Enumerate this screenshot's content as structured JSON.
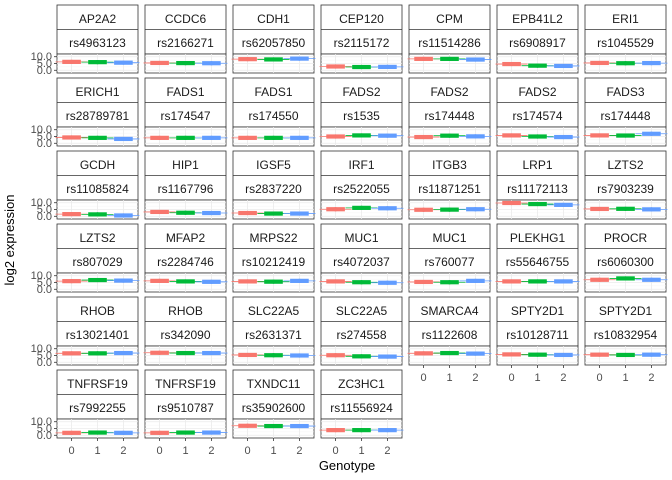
{
  "chart_data": {
    "type": "box",
    "xlabel": "Genotype",
    "ylabel": "log2 expression",
    "x_categories": [
      "0",
      "1",
      "2"
    ],
    "y_ticks": [
      0.0,
      5.0,
      10.0
    ],
    "y_tick_labels": [
      "0.0",
      "5.0",
      "10.0"
    ],
    "ylim": [
      -2,
      12
    ],
    "colors": [
      "#F8766D",
      "#00BA38",
      "#619CFF"
    ],
    "grid": true,
    "legend": "none",
    "panels": [
      {
        "gene": "AP2A2",
        "snp": "rs4963123",
        "medians": [
          6.2,
          6.0,
          5.6
        ]
      },
      {
        "gene": "CCDC6",
        "snp": "rs2166271",
        "medians": [
          5.4,
          5.3,
          5.2
        ]
      },
      {
        "gene": "CDH1",
        "snp": "rs62057850",
        "medians": [
          8.2,
          8.0,
          8.6
        ]
      },
      {
        "gene": "CEP120",
        "snp": "rs2115172",
        "medians": [
          2.8,
          2.4,
          2.5
        ]
      },
      {
        "gene": "CPM",
        "snp": "rs11514286",
        "medians": [
          8.4,
          8.4,
          7.9
        ]
      },
      {
        "gene": "EPB41L2",
        "snp": "rs6908917",
        "medians": [
          4.6,
          3.4,
          3.2
        ]
      },
      {
        "gene": "ERI1",
        "snp": "rs1045529",
        "medians": [
          5.4,
          5.2,
          5.3
        ]
      },
      {
        "gene": "ERICH1",
        "snp": "rs28789781",
        "medians": [
          4.3,
          4.0,
          3.2
        ]
      },
      {
        "gene": "FADS1",
        "snp": "rs174547",
        "medians": [
          4.0,
          4.0,
          4.0
        ]
      },
      {
        "gene": "FADS1",
        "snp": "rs174550",
        "medians": [
          4.0,
          4.0,
          4.0
        ]
      },
      {
        "gene": "FADS2",
        "snp": "rs1535",
        "medians": [
          5.0,
          5.8,
          5.6
        ]
      },
      {
        "gene": "FADS2",
        "snp": "rs174448",
        "medians": [
          4.6,
          5.6,
          5.1
        ]
      },
      {
        "gene": "FADS2",
        "snp": "rs174574",
        "medians": [
          5.8,
          5.0,
          4.6
        ]
      },
      {
        "gene": "FADS3",
        "snp": "rs174448",
        "medians": [
          5.8,
          5.7,
          7.0
        ]
      },
      {
        "gene": "GCDH",
        "snp": "rs11085824",
        "medians": [
          1.6,
          1.4,
          0.6
        ]
      },
      {
        "gene": "HIP1",
        "snp": "rs1167796",
        "medians": [
          3.2,
          2.6,
          2.4
        ]
      },
      {
        "gene": "IGSF5",
        "snp": "rs2837220",
        "medians": [
          2.4,
          2.0,
          2.0
        ]
      },
      {
        "gene": "IRF1",
        "snp": "rs2522055",
        "medians": [
          5.2,
          6.2,
          5.9
        ]
      },
      {
        "gene": "ITGB3",
        "snp": "rs11871251",
        "medians": [
          4.8,
          4.9,
          5.2
        ]
      },
      {
        "gene": "LRP1",
        "snp": "rs11172113",
        "medians": [
          9.8,
          9.0,
          8.4
        ]
      },
      {
        "gene": "LZTS2",
        "snp": "rs7903239",
        "medians": [
          5.4,
          5.5,
          5.1
        ]
      },
      {
        "gene": "LZTS2",
        "snp": "rs807029",
        "medians": [
          6.0,
          6.8,
          6.4
        ]
      },
      {
        "gene": "MFAP2",
        "snp": "rs2284746",
        "medians": [
          6.2,
          5.8,
          5.5
        ]
      },
      {
        "gene": "MRPS22",
        "snp": "rs10212419",
        "medians": [
          5.8,
          5.6,
          6.2
        ]
      },
      {
        "gene": "MUC1",
        "snp": "rs4072037",
        "medians": [
          5.8,
          5.2,
          4.8
        ]
      },
      {
        "gene": "MUC1",
        "snp": "rs760077",
        "medians": [
          5.4,
          5.2,
          6.2
        ]
      },
      {
        "gene": "PLEKHG1",
        "snp": "rs55646755",
        "medians": [
          5.8,
          5.8,
          5.8
        ]
      },
      {
        "gene": "PROCR",
        "snp": "rs6060300",
        "medians": [
          7.0,
          8.0,
          7.0
        ]
      },
      {
        "gene": "RHOB",
        "snp": "rs13021401",
        "medians": [
          6.6,
          6.6,
          6.8
        ]
      },
      {
        "gene": "RHOB",
        "snp": "rs342090",
        "medians": [
          7.0,
          6.8,
          6.8
        ]
      },
      {
        "gene": "SLC22A5",
        "snp": "rs2631371",
        "medians": [
          5.4,
          5.2,
          5.0
        ]
      },
      {
        "gene": "SLC22A5",
        "snp": "rs274558",
        "medians": [
          5.2,
          4.4,
          4.2
        ]
      },
      {
        "gene": "SMARCA4",
        "snp": "rs1122608",
        "medians": [
          6.6,
          6.8,
          6.4
        ]
      },
      {
        "gene": "SPTY2D1",
        "snp": "rs10128711",
        "medians": [
          5.8,
          5.6,
          5.4
        ]
      },
      {
        "gene": "SPTY2D1",
        "snp": "rs10832954",
        "medians": [
          5.6,
          5.4,
          5.6
        ]
      },
      {
        "gene": "TNFRSF19",
        "snp": "rs7992255",
        "medians": [
          1.8,
          2.0,
          1.8
        ]
      },
      {
        "gene": "TNFRSF19",
        "snp": "rs9510787",
        "medians": [
          1.8,
          2.0,
          2.0
        ]
      },
      {
        "gene": "TXNDC11",
        "snp": "rs35902600",
        "medians": [
          7.0,
          6.8,
          6.8
        ]
      },
      {
        "gene": "ZC3HC1",
        "snp": "rs11556924",
        "medians": [
          3.8,
          3.8,
          3.8
        ]
      }
    ]
  }
}
